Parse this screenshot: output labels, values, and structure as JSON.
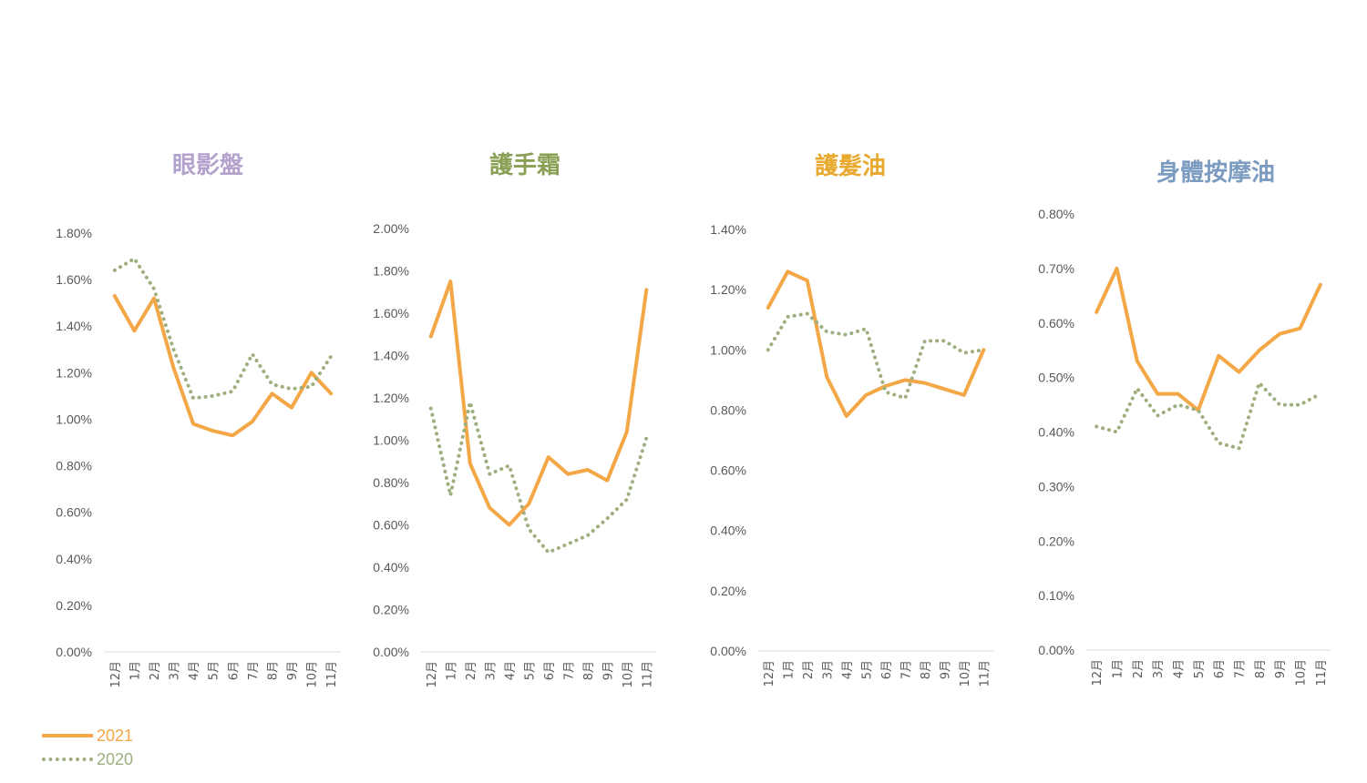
{
  "legend": {
    "series_2021": "2021",
    "series_2020": "2020"
  },
  "colors": {
    "series_2021": "#F4A746",
    "series_2020": "#9DAF7E"
  },
  "chart_data": [
    {
      "type": "line",
      "title": "眼影盤",
      "title_color": "#B3A2CC",
      "categories": [
        "12月",
        "1月",
        "2月",
        "3月",
        "4月",
        "5月",
        "6月",
        "7月",
        "8月",
        "9月",
        "10月",
        "11月"
      ],
      "yticks": [
        "0.00%",
        "0.20%",
        "0.40%",
        "0.60%",
        "0.80%",
        "1.00%",
        "1.20%",
        "1.40%",
        "1.60%",
        "1.80%"
      ],
      "ylim": [
        0,
        1.8
      ],
      "series": [
        {
          "name": "2021",
          "style": "solid",
          "values": [
            1.53,
            1.38,
            1.52,
            1.22,
            0.98,
            0.95,
            0.93,
            0.99,
            1.11,
            1.05,
            1.2,
            1.11
          ]
        },
        {
          "name": "2020",
          "style": "dotted",
          "values": [
            1.64,
            1.69,
            1.56,
            1.3,
            1.09,
            1.1,
            1.12,
            1.28,
            1.15,
            1.13,
            1.14,
            1.27
          ]
        }
      ]
    },
    {
      "type": "line",
      "title": "護手霜",
      "title_color": "#8AA055",
      "categories": [
        "12月",
        "1月",
        "2月",
        "3月",
        "4月",
        "5月",
        "6月",
        "7月",
        "8月",
        "9月",
        "10月",
        "11月"
      ],
      "yticks": [
        "0.00%",
        "0.20%",
        "0.40%",
        "0.60%",
        "0.80%",
        "1.00%",
        "1.20%",
        "1.40%",
        "1.60%",
        "1.80%",
        "2.00%"
      ],
      "ylim": [
        0,
        2.0
      ],
      "series": [
        {
          "name": "2021",
          "style": "solid",
          "values": [
            1.49,
            1.75,
            0.89,
            0.68,
            0.6,
            0.7,
            0.92,
            0.84,
            0.86,
            0.81,
            1.04,
            1.71
          ]
        },
        {
          "name": "2020",
          "style": "dotted",
          "values": [
            1.15,
            0.74,
            1.18,
            0.84,
            0.88,
            0.58,
            0.47,
            0.51,
            0.55,
            0.63,
            0.72,
            1.01
          ]
        }
      ]
    },
    {
      "type": "line",
      "title": "護髮油",
      "title_color": "#E8A92E",
      "categories": [
        "12月",
        "1月",
        "2月",
        "3月",
        "4月",
        "5月",
        "6月",
        "7月",
        "8月",
        "9月",
        "10月",
        "11月"
      ],
      "yticks": [
        "0.00%",
        "0.20%",
        "0.40%",
        "0.60%",
        "0.80%",
        "1.00%",
        "1.20%",
        "1.40%"
      ],
      "ylim": [
        0,
        1.4
      ],
      "series": [
        {
          "name": "2021",
          "style": "solid",
          "values": [
            1.14,
            1.26,
            1.23,
            0.91,
            0.78,
            0.85,
            0.88,
            0.9,
            0.89,
            0.87,
            0.85,
            1.0
          ]
        },
        {
          "name": "2020",
          "style": "dotted",
          "values": [
            1.0,
            1.11,
            1.12,
            1.06,
            1.05,
            1.07,
            0.86,
            0.84,
            1.03,
            1.03,
            0.99,
            1.0
          ]
        }
      ]
    },
    {
      "type": "line",
      "title": "身體按摩油",
      "title_color": "#7C9BC1",
      "categories": [
        "12月",
        "1月",
        "2月",
        "3月",
        "4月",
        "5月",
        "6月",
        "7月",
        "8月",
        "9月",
        "10月",
        "11月"
      ],
      "yticks": [
        "0.00%",
        "0.10%",
        "0.20%",
        "0.30%",
        "0.40%",
        "0.50%",
        "0.60%",
        "0.70%",
        "0.80%"
      ],
      "ylim": [
        0,
        0.8
      ],
      "series": [
        {
          "name": "2021",
          "style": "solid",
          "values": [
            0.62,
            0.7,
            0.53,
            0.47,
            0.47,
            0.44,
            0.54,
            0.51,
            0.55,
            0.58,
            0.59,
            0.67
          ]
        },
        {
          "name": "2020",
          "style": "dotted",
          "values": [
            0.41,
            0.4,
            0.48,
            0.43,
            0.45,
            0.44,
            0.38,
            0.37,
            0.49,
            0.45,
            0.45,
            0.47
          ]
        }
      ]
    }
  ]
}
